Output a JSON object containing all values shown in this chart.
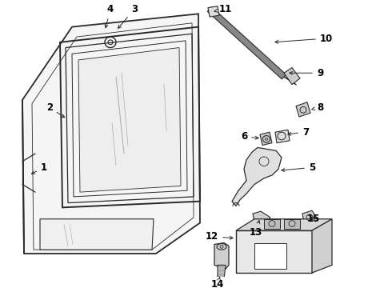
{
  "bg_color": "#ffffff",
  "line_color": "#2a2a2a",
  "label_color": "#000000",
  "bold_fontsize": 8.5,
  "fig_width": 4.9,
  "fig_height": 3.6,
  "dpi": 100
}
